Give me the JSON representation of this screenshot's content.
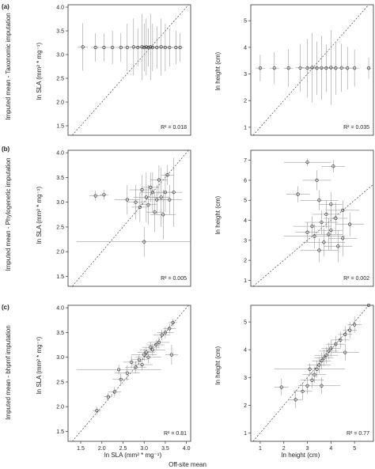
{
  "figure": {
    "x_common_label": "Off-site mean",
    "row_labels": [
      "Imputed mean - Taxonomic imputation",
      "Imputed mean - Phylogenetic imputation",
      "Imputed mean - bhpmf imputation"
    ]
  },
  "chart_data": [
    {
      "type": "scatter",
      "panel_label": "(a)",
      "ylabel": "ln SLA (mm² * mg⁻¹)",
      "xlabel": "",
      "xlim": [
        1.2,
        4.1
      ],
      "ylim": [
        1.3,
        4.05
      ],
      "xticks": [],
      "yticks": [
        "1.5",
        "2.0",
        "2.5",
        "3.0",
        "3.5",
        "4.0"
      ],
      "annotation": "R² = 0.018",
      "points": [
        {
          "x": 1.55,
          "y": 3.16,
          "xe": 0.12,
          "ye": 0.5
        },
        {
          "x": 1.85,
          "y": 3.15,
          "xe": 0.1,
          "ye": 0.3
        },
        {
          "x": 2.05,
          "y": 3.15,
          "xe": 0.1,
          "ye": 0.3
        },
        {
          "x": 2.25,
          "y": 3.15,
          "xe": 0.1,
          "ye": 0.35
        },
        {
          "x": 2.45,
          "y": 3.15,
          "xe": 0.1,
          "ye": 0.3
        },
        {
          "x": 2.6,
          "y": 3.15,
          "xe": 0.1,
          "ye": 0.5
        },
        {
          "x": 2.75,
          "y": 3.16,
          "xe": 0.1,
          "ye": 0.6
        },
        {
          "x": 2.85,
          "y": 3.15,
          "xe": 0.1,
          "ye": 0.4
        },
        {
          "x": 2.95,
          "y": 3.16,
          "xe": 0.1,
          "ye": 0.7
        },
        {
          "x": 3.0,
          "y": 3.15,
          "xe": 0.1,
          "ye": 0.5
        },
        {
          "x": 3.05,
          "y": 3.16,
          "xe": 0.1,
          "ye": 0.6
        },
        {
          "x": 3.1,
          "y": 3.15,
          "xe": 0.1,
          "ye": 0.4
        },
        {
          "x": 3.15,
          "y": 3.16,
          "xe": 0.1,
          "ye": 0.7
        },
        {
          "x": 3.2,
          "y": 3.15,
          "xe": 0.1,
          "ye": 0.5
        },
        {
          "x": 3.3,
          "y": 3.15,
          "xe": 0.1,
          "ye": 0.45
        },
        {
          "x": 3.4,
          "y": 3.16,
          "xe": 0.1,
          "ye": 0.6
        },
        {
          "x": 3.5,
          "y": 3.15,
          "xe": 0.1,
          "ye": 0.5
        },
        {
          "x": 3.6,
          "y": 3.15,
          "xe": 0.1,
          "ye": 0.4
        },
        {
          "x": 3.75,
          "y": 3.15,
          "xe": 0.1,
          "ye": 0.35
        },
        {
          "x": 3.85,
          "y": 3.15,
          "xe": 0.08,
          "ye": 0.3
        }
      ]
    },
    {
      "type": "scatter",
      "panel_label": "",
      "ylabel": "ln height (cm)",
      "xlabel": "",
      "xlim": [
        0.6,
        5.8
      ],
      "ylim": [
        0.7,
        5.6
      ],
      "xticks": [],
      "yticks": [
        "1",
        "2",
        "3",
        "4",
        "5"
      ],
      "annotation": "R² = 0.035",
      "points": [
        {
          "x": 1.0,
          "y": 3.22,
          "xe": 0.2,
          "ye": 0.5
        },
        {
          "x": 1.6,
          "y": 3.22,
          "xe": 0.2,
          "ye": 0.6
        },
        {
          "x": 2.2,
          "y": 3.22,
          "xe": 0.2,
          "ye": 0.7
        },
        {
          "x": 2.7,
          "y": 3.23,
          "xe": 0.2,
          "ye": 0.9
        },
        {
          "x": 3.0,
          "y": 3.22,
          "xe": 0.2,
          "ye": 1.1
        },
        {
          "x": 3.2,
          "y": 3.24,
          "xe": 0.2,
          "ye": 1.3
        },
        {
          "x": 3.4,
          "y": 3.22,
          "xe": 0.2,
          "ye": 1.0
        },
        {
          "x": 3.6,
          "y": 3.23,
          "xe": 0.2,
          "ye": 1.2
        },
        {
          "x": 3.8,
          "y": 3.22,
          "xe": 0.2,
          "ye": 0.9
        },
        {
          "x": 4.0,
          "y": 3.24,
          "xe": 0.2,
          "ye": 1.4
        },
        {
          "x": 4.2,
          "y": 3.22,
          "xe": 0.2,
          "ye": 1.0
        },
        {
          "x": 4.45,
          "y": 3.23,
          "xe": 0.2,
          "ye": 0.9
        },
        {
          "x": 4.7,
          "y": 3.22,
          "xe": 0.2,
          "ye": 0.8
        },
        {
          "x": 5.0,
          "y": 3.22,
          "xe": 0.2,
          "ye": 0.7
        },
        {
          "x": 5.6,
          "y": 3.22,
          "xe": 0.1,
          "ye": 0.4
        }
      ]
    },
    {
      "type": "scatter",
      "panel_label": "(b)",
      "ylabel": "ln SLA (mm² * mg⁻¹)",
      "xlabel": "",
      "xlim": [
        1.2,
        4.1
      ],
      "ylim": [
        1.3,
        4.05
      ],
      "xticks": [],
      "yticks": [
        "1.5",
        "2.0",
        "2.5",
        "3.0",
        "3.5",
        "4.0"
      ],
      "annotation": "R² = 0.005",
      "points": [
        {
          "x": 1.85,
          "y": 3.13,
          "xe": 0.15,
          "ye": 0.1
        },
        {
          "x": 2.05,
          "y": 3.15,
          "xe": 0.1,
          "ye": 0.1
        },
        {
          "x": 2.6,
          "y": 3.05,
          "xe": 0.3,
          "ye": 0.3
        },
        {
          "x": 2.8,
          "y": 3.0,
          "xe": 0.2,
          "ye": 0.35
        },
        {
          "x": 2.9,
          "y": 2.9,
          "xe": 0.2,
          "ye": 0.3
        },
        {
          "x": 2.95,
          "y": 3.25,
          "xe": 0.3,
          "ye": 0.3
        },
        {
          "x": 3.0,
          "y": 2.2,
          "xe": 1.6,
          "ye": 0.3
        },
        {
          "x": 3.05,
          "y": 3.1,
          "xe": 0.3,
          "ye": 0.5
        },
        {
          "x": 3.1,
          "y": 2.95,
          "xe": 0.2,
          "ye": 0.4
        },
        {
          "x": 3.15,
          "y": 3.3,
          "xe": 0.2,
          "ye": 0.3
        },
        {
          "x": 3.2,
          "y": 3.2,
          "xe": 0.3,
          "ye": 0.4
        },
        {
          "x": 3.25,
          "y": 2.8,
          "xe": 0.2,
          "ye": 0.4
        },
        {
          "x": 3.3,
          "y": 3.05,
          "xe": 0.2,
          "ye": 0.3
        },
        {
          "x": 3.35,
          "y": 3.45,
          "xe": 0.2,
          "ye": 0.3
        },
        {
          "x": 3.4,
          "y": 3.1,
          "xe": 0.2,
          "ye": 0.6
        },
        {
          "x": 3.45,
          "y": 2.75,
          "xe": 0.3,
          "ye": 0.5
        },
        {
          "x": 3.5,
          "y": 3.2,
          "xe": 0.2,
          "ye": 0.4
        },
        {
          "x": 3.6,
          "y": 3.05,
          "xe": 0.3,
          "ye": 0.3
        },
        {
          "x": 3.7,
          "y": 3.2,
          "xe": 0.2,
          "ye": 0.7
        },
        {
          "x": 3.55,
          "y": 3.55,
          "xe": 0.15,
          "ye": 0.2
        }
      ]
    },
    {
      "type": "scatter",
      "panel_label": "",
      "ylabel": "ln height (cm)",
      "xlabel": "",
      "xlim": [
        0.6,
        5.8
      ],
      "ylim": [
        0.7,
        7.5
      ],
      "xticks": [],
      "yticks": [
        "1",
        "2",
        "3",
        "4",
        "5",
        "6",
        "7"
      ],
      "annotation": "R² = 0.002",
      "points": [
        {
          "x": 3.0,
          "y": 6.9,
          "xe": 1.0,
          "ye": 0.2
        },
        {
          "x": 4.1,
          "y": 6.7,
          "xe": 0.5,
          "ye": 0.3
        },
        {
          "x": 3.4,
          "y": 6.0,
          "xe": 0.6,
          "ye": 0.5
        },
        {
          "x": 2.6,
          "y": 5.3,
          "xe": 0.5,
          "ye": 0.4
        },
        {
          "x": 3.5,
          "y": 5.0,
          "xe": 0.8,
          "ye": 0.5
        },
        {
          "x": 4.0,
          "y": 4.8,
          "xe": 0.5,
          "ye": 0.6
        },
        {
          "x": 4.5,
          "y": 4.5,
          "xe": 0.7,
          "ye": 0.5
        },
        {
          "x": 3.8,
          "y": 4.3,
          "xe": 0.6,
          "ye": 0.7
        },
        {
          "x": 4.2,
          "y": 4.1,
          "xe": 0.5,
          "ye": 0.8
        },
        {
          "x": 3.6,
          "y": 3.9,
          "xe": 0.7,
          "ye": 0.6
        },
        {
          "x": 4.8,
          "y": 3.8,
          "xe": 0.6,
          "ye": 0.6
        },
        {
          "x": 3.2,
          "y": 3.7,
          "xe": 0.8,
          "ye": 0.5
        },
        {
          "x": 4.0,
          "y": 3.5,
          "xe": 0.5,
          "ye": 1.0
        },
        {
          "x": 3.9,
          "y": 3.3,
          "xe": 0.6,
          "ye": 0.8
        },
        {
          "x": 3.3,
          "y": 3.2,
          "xe": 1.3,
          "ye": 0.6
        },
        {
          "x": 4.5,
          "y": 3.1,
          "xe": 0.6,
          "ye": 0.9
        },
        {
          "x": 3.7,
          "y": 2.9,
          "xe": 0.9,
          "ye": 0.7
        },
        {
          "x": 4.3,
          "y": 2.7,
          "xe": 0.6,
          "ye": 0.8
        },
        {
          "x": 3.5,
          "y": 2.5,
          "xe": 0.8,
          "ye": 0.6
        },
        {
          "x": 3.0,
          "y": 3.4,
          "xe": 0.5,
          "ye": 0.5
        }
      ]
    },
    {
      "type": "scatter",
      "panel_label": "(c)",
      "ylabel": "ln SLA (mm² * mg⁻¹)",
      "xlabel": "ln SLA (mm² * mg⁻¹)",
      "xlim": [
        1.2,
        4.1
      ],
      "ylim": [
        1.3,
        4.05
      ],
      "xticks": [
        "1.5",
        "2.0",
        "2.5",
        "3.0",
        "3.5",
        "4.0"
      ],
      "yticks": [
        "1.5",
        "2.0",
        "2.5",
        "3.0",
        "3.5",
        "4.0"
      ],
      "annotation": "R² = 0.81",
      "points": [
        {
          "x": 1.88,
          "y": 1.92,
          "xe": 0.1,
          "ye": 0.08
        },
        {
          "x": 2.15,
          "y": 2.2,
          "xe": 0.1,
          "ye": 0.08
        },
        {
          "x": 2.3,
          "y": 2.3,
          "xe": 0.15,
          "ye": 0.1
        },
        {
          "x": 2.45,
          "y": 2.55,
          "xe": 0.2,
          "ye": 0.12
        },
        {
          "x": 2.6,
          "y": 2.68,
          "xe": 0.3,
          "ye": 0.15
        },
        {
          "x": 2.7,
          "y": 2.9,
          "xe": 0.2,
          "ye": 0.12
        },
        {
          "x": 2.8,
          "y": 2.8,
          "xe": 0.25,
          "ye": 0.12
        },
        {
          "x": 2.88,
          "y": 2.95,
          "xe": 0.2,
          "ye": 0.1
        },
        {
          "x": 2.95,
          "y": 2.85,
          "xe": 0.25,
          "ye": 0.12
        },
        {
          "x": 3.0,
          "y": 3.05,
          "xe": 0.3,
          "ye": 0.12
        },
        {
          "x": 3.05,
          "y": 3.1,
          "xe": 0.2,
          "ye": 0.1
        },
        {
          "x": 3.1,
          "y": 3.0,
          "xe": 0.3,
          "ye": 0.12
        },
        {
          "x": 3.15,
          "y": 3.2,
          "xe": 0.2,
          "ye": 0.1
        },
        {
          "x": 3.2,
          "y": 3.15,
          "xe": 0.3,
          "ye": 0.12
        },
        {
          "x": 3.28,
          "y": 3.25,
          "xe": 0.2,
          "ye": 0.1
        },
        {
          "x": 3.35,
          "y": 3.3,
          "xe": 0.25,
          "ye": 0.12
        },
        {
          "x": 3.42,
          "y": 3.45,
          "xe": 0.2,
          "ye": 0.1
        },
        {
          "x": 3.5,
          "y": 3.5,
          "xe": 0.2,
          "ye": 0.12
        },
        {
          "x": 3.6,
          "y": 3.58,
          "xe": 0.15,
          "ye": 0.1
        },
        {
          "x": 3.68,
          "y": 3.7,
          "xe": 0.1,
          "ye": 0.08
        },
        {
          "x": 2.4,
          "y": 2.75,
          "xe": 1.0,
          "ye": 0.1
        },
        {
          "x": 3.65,
          "y": 3.05,
          "xe": 0.15,
          "ye": 0.2
        }
      ]
    },
    {
      "type": "scatter",
      "panel_label": "",
      "ylabel": "ln height (cm)",
      "xlabel": "ln height (cm)",
      "xlim": [
        0.6,
        5.8
      ],
      "ylim": [
        0.7,
        5.6
      ],
      "xticks": [
        "1",
        "2",
        "3",
        "4",
        "5"
      ],
      "yticks": [
        "1",
        "2",
        "3",
        "4",
        "5"
      ],
      "annotation": "R² = 0.77",
      "points": [
        {
          "x": 1.9,
          "y": 2.65,
          "xe": 0.3,
          "ye": 0.3
        },
        {
          "x": 2.5,
          "y": 2.2,
          "xe": 0.3,
          "ye": 0.3
        },
        {
          "x": 2.8,
          "y": 2.5,
          "xe": 0.4,
          "ye": 0.3
        },
        {
          "x": 3.0,
          "y": 2.7,
          "xe": 0.4,
          "ye": 0.3
        },
        {
          "x": 3.2,
          "y": 2.9,
          "xe": 0.5,
          "ye": 0.3
        },
        {
          "x": 3.3,
          "y": 3.1,
          "xe": 0.5,
          "ye": 0.3
        },
        {
          "x": 3.4,
          "y": 3.3,
          "xe": 0.4,
          "ye": 0.3
        },
        {
          "x": 3.5,
          "y": 3.45,
          "xe": 0.5,
          "ye": 0.3
        },
        {
          "x": 3.6,
          "y": 3.6,
          "xe": 0.4,
          "ye": 0.3
        },
        {
          "x": 3.7,
          "y": 3.7,
          "xe": 0.4,
          "ye": 0.3
        },
        {
          "x": 3.8,
          "y": 3.8,
          "xe": 0.5,
          "ye": 0.3
        },
        {
          "x": 3.9,
          "y": 3.95,
          "xe": 0.4,
          "ye": 0.3
        },
        {
          "x": 4.0,
          "y": 4.05,
          "xe": 0.4,
          "ye": 0.3
        },
        {
          "x": 4.2,
          "y": 4.2,
          "xe": 0.4,
          "ye": 0.3
        },
        {
          "x": 4.4,
          "y": 4.35,
          "xe": 0.4,
          "ye": 0.3
        },
        {
          "x": 4.6,
          "y": 4.55,
          "xe": 0.3,
          "ye": 0.3
        },
        {
          "x": 4.8,
          "y": 4.7,
          "xe": 0.3,
          "ye": 0.3
        },
        {
          "x": 5.0,
          "y": 4.9,
          "xe": 0.3,
          "ye": 0.3
        },
        {
          "x": 5.6,
          "y": 5.6,
          "xe": 0.05,
          "ye": 0.05
        },
        {
          "x": 3.1,
          "y": 3.3,
          "xe": 1.5,
          "ye": 0.2
        },
        {
          "x": 4.6,
          "y": 3.9,
          "xe": 0.6,
          "ye": 0.3
        },
        {
          "x": 3.6,
          "y": 2.7,
          "xe": 0.8,
          "ye": 0.3
        }
      ]
    }
  ]
}
